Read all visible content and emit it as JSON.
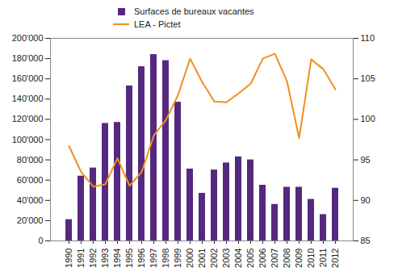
{
  "chart_data": {
    "type": "bar",
    "categories": [
      "1990",
      "1991",
      "1992",
      "1993",
      "1994",
      "1995",
      "1996",
      "1997",
      "1998",
      "1999",
      "2000",
      "2001",
      "2002",
      "2003",
      "2004",
      "2005",
      "2006",
      "2007",
      "2008",
      "2009",
      "2010",
      "2011",
      "2012"
    ],
    "series": [
      {
        "name": "Surfaces de bureaux vacantes",
        "type": "bar",
        "color": "#55297f",
        "values": [
          21000,
          64000,
          72000,
          116000,
          117000,
          153000,
          172000,
          184000,
          178000,
          137000,
          71000,
          47000,
          70000,
          77000,
          83000,
          80000,
          55000,
          36000,
          53000,
          53000,
          41000,
          26000,
          52000
        ]
      },
      {
        "name": "LEA - Pictet",
        "type": "line",
        "axis": "y2",
        "color": "#f0901e",
        "values": [
          96.7,
          93.5,
          91.7,
          92.0,
          95.2,
          91.8,
          93.5,
          98.0,
          99.9,
          103.0,
          107.5,
          104.6,
          102.2,
          102.1,
          103.2,
          104.4,
          107.5,
          108.1,
          104.7,
          97.7,
          107.4,
          106.2,
          103.7
        ]
      }
    ],
    "ylim": [
      0,
      200000
    ],
    "yticks": [
      0,
      {
        "value": 20000,
        "label": "20'000"
      },
      {
        "value": 40000,
        "label": "40'000"
      },
      {
        "value": 60000,
        "label": "60'000"
      },
      {
        "value": 80000,
        "label": "80'000"
      },
      {
        "value": 100000,
        "label": "100'000"
      },
      {
        "value": 120000,
        "label": "120'000"
      },
      {
        "value": 140000,
        "label": "140'000"
      },
      {
        "value": 160000,
        "label": "160'000"
      },
      {
        "value": 180000,
        "label": "180'000"
      },
      {
        "value": 200000,
        "label": "200'000"
      }
    ],
    "y2lim": [
      85,
      110
    ],
    "y2ticks": [
      85,
      90,
      95,
      100,
      105,
      110
    ],
    "legend": "top"
  }
}
